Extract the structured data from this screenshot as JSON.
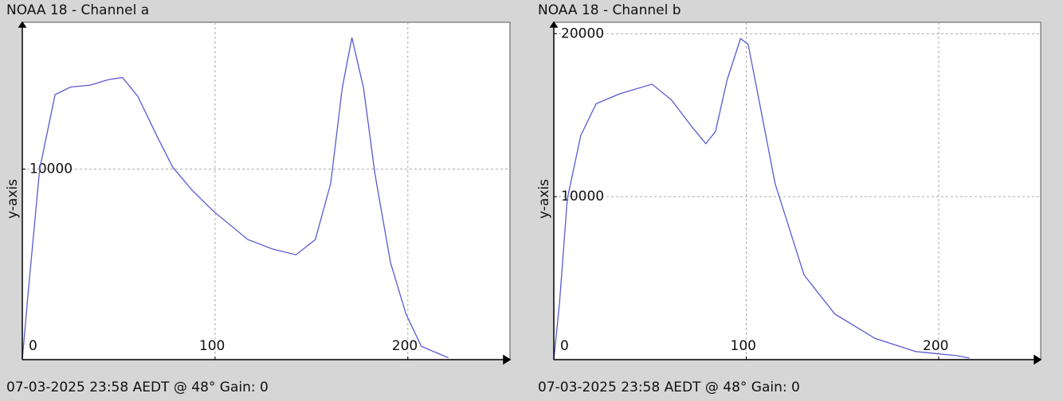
{
  "chart_data": [
    {
      "type": "line",
      "title": "NOAA 18 - Channel a",
      "ylabel": "y-axis",
      "footer": "07-03-2025 23:58 AEDT @ 48° Gain: 0",
      "x": [
        0,
        3,
        9,
        17,
        25,
        35,
        45,
        52,
        60,
        70,
        78,
        88,
        99,
        117,
        130,
        142,
        152,
        160,
        166,
        171,
        177,
        183,
        191,
        199,
        207,
        221
      ],
      "series": [
        {
          "name": "Channel a",
          "color": "#5a5ad2",
          "values": [
            0,
            3500,
            10000,
            13900,
            14300,
            14400,
            14700,
            14800,
            13800,
            11700,
            10100,
            8900,
            7800,
            6300,
            5800,
            5500,
            6300,
            9250,
            14250,
            16900,
            14250,
            9700,
            5100,
            2400,
            700,
            100
          ]
        }
      ],
      "xlim": [
        0,
        253
      ],
      "ylim": [
        0,
        17700
      ],
      "xticks": [
        0,
        100,
        200
      ],
      "yticks": [
        10000
      ],
      "grid": true
    },
    {
      "type": "line",
      "title": "NOAA 18 - Channel b",
      "ylabel": "y-axis",
      "footer": "07-03-2025 23:58 AEDT @ 48° Gain: 0",
      "x": [
        0,
        3,
        7,
        14,
        22,
        34,
        51,
        61,
        72,
        79,
        84,
        90,
        97,
        101,
        107,
        115,
        130,
        146,
        167,
        188,
        209,
        216
      ],
      "series": [
        {
          "name": "Channel b",
          "color": "#5a5ad2",
          "values": [
            0,
            3500,
            9850,
            13750,
            15700,
            16300,
            16900,
            15950,
            14250,
            13250,
            14000,
            17150,
            19700,
            19350,
            15700,
            10800,
            5200,
            2800,
            1300,
            500,
            250,
            100
          ]
        }
      ],
      "xlim": [
        0,
        253
      ],
      "ylim": [
        0,
        20700
      ],
      "xticks": [
        0,
        100,
        200
      ],
      "yticks": [
        10000,
        20000
      ],
      "grid": true
    }
  ]
}
